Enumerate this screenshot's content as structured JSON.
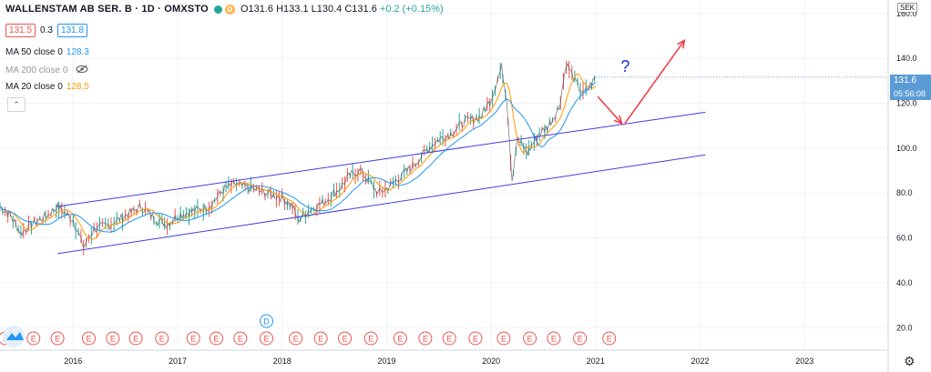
{
  "header": {
    "symbol": "WALLENSTAM AB SER. B · 1D · OMXSTO",
    "badge_letter": "D",
    "open": "O131.6",
    "high": "H133.1",
    "low": "L130.4",
    "close": "C131.6",
    "change": "+0.2 (+0.15%)"
  },
  "quote": {
    "bid": "131.5",
    "spread": "0.3",
    "ask": "131.8"
  },
  "indicators": [
    {
      "label": "MA 50 close 0",
      "value": "128.3",
      "color": "#2196f3"
    },
    {
      "label": "MA 200 close 0",
      "value": "",
      "color": "#9598a1",
      "hidden": true
    },
    {
      "label": "MA 20 close 0",
      "value": "128.5",
      "color": "#ff9800"
    }
  ],
  "axis": {
    "currency": "SEK",
    "last_price": "131.6",
    "countdown": "05:56:08"
  },
  "chart_data": {
    "type": "line",
    "y_ticks": [
      "160.0",
      "140.0",
      "120.0",
      "100.0",
      "80.0",
      "60.0",
      "40.0",
      "20.0"
    ],
    "y_tick_values": [
      160,
      140,
      120,
      100,
      80,
      60,
      40,
      20
    ],
    "ylim": [
      10,
      166
    ],
    "x_ticks": [
      "2016",
      "2017",
      "2018",
      "2019",
      "2020",
      "2021",
      "2022",
      "2023"
    ],
    "x_tick_values": [
      2016,
      2017,
      2018,
      2019,
      2020,
      2021,
      2022,
      2023
    ],
    "xlim": [
      2015.3,
      2023.8
    ],
    "price_series": [
      [
        2015.3,
        74
      ],
      [
        2015.4,
        70
      ],
      [
        2015.5,
        62
      ],
      [
        2015.6,
        66
      ],
      [
        2015.75,
        70
      ],
      [
        2015.85,
        74
      ],
      [
        2016.0,
        68
      ],
      [
        2016.1,
        56
      ],
      [
        2016.2,
        64
      ],
      [
        2016.35,
        66
      ],
      [
        2016.5,
        70
      ],
      [
        2016.65,
        74
      ],
      [
        2016.8,
        68
      ],
      [
        2016.9,
        66
      ],
      [
        2017.0,
        70
      ],
      [
        2017.15,
        72
      ],
      [
        2017.3,
        74
      ],
      [
        2017.45,
        82
      ],
      [
        2017.55,
        84
      ],
      [
        2017.7,
        82
      ],
      [
        2017.85,
        80
      ],
      [
        2018.0,
        78
      ],
      [
        2018.1,
        74
      ],
      [
        2018.15,
        68
      ],
      [
        2018.25,
        72
      ],
      [
        2018.4,
        76
      ],
      [
        2018.55,
        82
      ],
      [
        2018.65,
        88
      ],
      [
        2018.75,
        90
      ],
      [
        2018.85,
        84
      ],
      [
        2018.92,
        80
      ],
      [
        2019.0,
        82
      ],
      [
        2019.1,
        86
      ],
      [
        2019.25,
        92
      ],
      [
        2019.4,
        100
      ],
      [
        2019.5,
        104
      ],
      [
        2019.6,
        106
      ],
      [
        2019.75,
        112
      ],
      [
        2019.9,
        114
      ],
      [
        2020.0,
        122
      ],
      [
        2020.1,
        136
      ],
      [
        2020.15,
        122
      ],
      [
        2020.2,
        86
      ],
      [
        2020.25,
        104
      ],
      [
        2020.35,
        98
      ],
      [
        2020.45,
        106
      ],
      [
        2020.55,
        110
      ],
      [
        2020.65,
        118
      ],
      [
        2020.72,
        138
      ],
      [
        2020.8,
        130
      ],
      [
        2020.88,
        124
      ],
      [
        2020.95,
        128
      ],
      [
        2021.0,
        131.6
      ]
    ],
    "channel_lines": [
      {
        "from": [
          2015.85,
          74
        ],
        "to": [
          2022.05,
          116
        ]
      },
      {
        "from": [
          2015.85,
          53
        ],
        "to": [
          2022.05,
          97
        ]
      }
    ],
    "arrows": [
      {
        "from": [
          2021.02,
          123
        ],
        "to": [
          2021.25,
          111
        ],
        "color": "#f23645"
      },
      {
        "from": [
          2021.28,
          111
        ],
        "to": [
          2021.85,
          148
        ],
        "color": "#f23645"
      }
    ],
    "annotation": {
      "text": "?",
      "at": [
        2021.24,
        134
      ],
      "color": "#1a2dd6"
    },
    "event_markers": [
      {
        "x": 2015.35,
        "label": "E"
      },
      {
        "x": 2015.62,
        "label": "E"
      },
      {
        "x": 2015.85,
        "label": "E"
      },
      {
        "x": 2016.15,
        "label": "E"
      },
      {
        "x": 2016.38,
        "label": "E"
      },
      {
        "x": 2016.6,
        "label": "E"
      },
      {
        "x": 2016.85,
        "label": "E"
      },
      {
        "x": 2017.15,
        "label": "E"
      },
      {
        "x": 2017.37,
        "label": "E"
      },
      {
        "x": 2017.6,
        "label": "E"
      },
      {
        "x": 2017.85,
        "label": "E"
      },
      {
        "x": 2018.13,
        "label": "E"
      },
      {
        "x": 2018.37,
        "label": "E"
      },
      {
        "x": 2018.6,
        "label": "E"
      },
      {
        "x": 2018.85,
        "label": "E"
      },
      {
        "x": 2019.13,
        "label": "E"
      },
      {
        "x": 2019.37,
        "label": "E"
      },
      {
        "x": 2019.6,
        "label": "E"
      },
      {
        "x": 2019.85,
        "label": "E"
      },
      {
        "x": 2020.12,
        "label": "E"
      },
      {
        "x": 2020.37,
        "label": "E"
      },
      {
        "x": 2020.6,
        "label": "E"
      },
      {
        "x": 2020.85,
        "label": "E"
      },
      {
        "x": 2021.13,
        "label": "E"
      }
    ],
    "dividend_marker": {
      "x": 2017.85,
      "label": "D"
    },
    "colors": {
      "price": "#4a4a4a",
      "channel": "#3f3fe0",
      "ma_fast": "#ff9800",
      "ma_slow": "#2196f3"
    }
  }
}
